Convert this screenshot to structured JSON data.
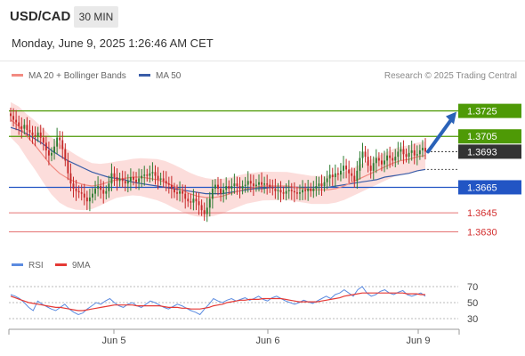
{
  "header": {
    "symbol": "USD/CAD",
    "timeframe": "30 MIN",
    "datetime": "Monday, June 9, 2025 1:26:46 AM CET"
  },
  "legend": {
    "ma20_label": "MA 20 + Bollinger Bands",
    "ma50_label": "MA 50",
    "ma20_color": "#f28b82",
    "ma50_color": "#3a5da8",
    "credit": "Research © 2025 Trading Central"
  },
  "rsi_legend": {
    "rsi_label": "RSI",
    "ma_label": "9MA",
    "rsi_color": "#5b8be0",
    "ma_color": "#e53935"
  },
  "colors": {
    "candle_up": "#2e7d32",
    "candle_down": "#c62828",
    "resistance": "#4e9a06",
    "support": "#2255c4",
    "target_line": "#e57373",
    "arrow": "#2a62b8",
    "band_fill": "#fbd7d5",
    "current_price_bg": "#333333"
  },
  "chart_data": [
    {
      "type": "candlestick",
      "x_labels": [
        "Jun 5",
        "Jun 6",
        "Jun 9"
      ],
      "ylim": [
        1.3622,
        1.3738
      ],
      "current_price": 1.3693,
      "forecast": "up, toward 1.3725",
      "levels": [
        {
          "value": 1.3725,
          "label": "1.3725",
          "kind": "resistance"
        },
        {
          "value": 1.3705,
          "label": "1.3705",
          "kind": "resistance"
        },
        {
          "value": 1.3665,
          "label": "1.3665",
          "kind": "support"
        },
        {
          "value": 1.3645,
          "label": "1.3645",
          "kind": "target"
        },
        {
          "value": 1.363,
          "label": "1.3630",
          "kind": "target"
        }
      ],
      "closes": [
        1.3721,
        1.3718,
        1.3716,
        1.3713,
        1.3711,
        1.3714,
        1.371,
        1.3708,
        1.3706,
        1.3705,
        1.3708,
        1.3704,
        1.37,
        1.3694,
        1.369,
        1.3692,
        1.3697,
        1.3704,
        1.3702,
        1.3695,
        1.3686,
        1.3676,
        1.3668,
        1.3664,
        1.3662,
        1.3661,
        1.366,
        1.3657,
        1.3654,
        1.3657,
        1.366,
        1.3664,
        1.3666,
        1.3663,
        1.366,
        1.3662,
        1.3668,
        1.3676,
        1.3673,
        1.367,
        1.3672,
        1.367,
        1.3668,
        1.367,
        1.3673,
        1.3671,
        1.3669,
        1.3672,
        1.3674,
        1.3675,
        1.3674,
        1.3676,
        1.3677,
        1.3674,
        1.3671,
        1.3672,
        1.367,
        1.3668,
        1.3667,
        1.3664,
        1.3661,
        1.366,
        1.3662,
        1.366,
        1.3656,
        1.3654,
        1.3653,
        1.3656,
        1.3654,
        1.3651,
        1.3647,
        1.3644,
        1.3649,
        1.3656,
        1.3664,
        1.3667,
        1.3664,
        1.366,
        1.3663,
        1.3666,
        1.3664,
        1.3666,
        1.3668,
        1.3666,
        1.3664,
        1.3666,
        1.3667,
        1.367,
        1.3668,
        1.3666,
        1.3667,
        1.3669,
        1.3667,
        1.3668,
        1.3667,
        1.3665,
        1.3664,
        1.3662,
        1.3663,
        1.3661,
        1.366,
        1.3662,
        1.3663,
        1.3662,
        1.3661,
        1.366,
        1.3661,
        1.3663,
        1.3662,
        1.3664,
        1.3662,
        1.3664,
        1.3666,
        1.3668,
        1.3666,
        1.3669,
        1.3672,
        1.3675,
        1.3673,
        1.3676,
        1.3675,
        1.3678,
        1.3682,
        1.3679,
        1.3676,
        1.3674,
        1.367,
        1.3678,
        1.3688,
        1.3693,
        1.3689,
        1.3682,
        1.3678,
        1.3684,
        1.3688,
        1.3686,
        1.3683,
        1.3686,
        1.369,
        1.3688,
        1.3686,
        1.3689,
        1.3693,
        1.3695,
        1.3691,
        1.3689,
        1.3692,
        1.3694,
        1.369,
        1.3691,
        1.3694,
        1.3696,
        1.3693
      ],
      "series": [
        {
          "name": "MA 20 + Bollinger Bands",
          "values": [
            1.3718,
            1.3713,
            1.3705,
            1.3698,
            1.369,
            1.3682,
            1.3676,
            1.3672,
            1.3669,
            1.3667,
            1.3666,
            1.3667,
            1.3669,
            1.3671,
            1.3672,
            1.3673,
            1.3673,
            1.3672,
            1.3671,
            1.3669,
            1.3666,
            1.3663,
            1.366,
            1.3658,
            1.3657,
            1.3657,
            1.3658,
            1.366,
            1.3662,
            1.3664,
            1.3665,
            1.3666,
            1.3666,
            1.3666,
            1.3666,
            1.3665,
            1.3664,
            1.3663,
            1.3663,
            1.3663,
            1.3664,
            1.3666,
            1.3669,
            1.3672,
            1.3675,
            1.3678,
            1.3681,
            1.3684,
            1.3686,
            1.3687,
            1.3689,
            1.369
          ]
        },
        {
          "name": "MA 50",
          "values": [
            1.3712,
            1.371,
            1.3707,
            1.3703,
            1.3699,
            1.3694,
            1.369,
            1.3686,
            1.3683,
            1.368,
            1.3677,
            1.3675,
            1.3673,
            1.3672,
            1.3671,
            1.3669,
            1.3668,
            1.3667,
            1.3666,
            1.3665,
            1.3664,
            1.3663,
            1.3662,
            1.3661,
            1.366,
            1.366,
            1.366,
            1.3661,
            1.3662,
            1.3663,
            1.3664,
            1.3664,
            1.3665,
            1.3665,
            1.3665,
            1.3665,
            1.3665,
            1.3665,
            1.3665,
            1.3665,
            1.3666,
            1.3667,
            1.3668,
            1.3669,
            1.367,
            1.3671,
            1.3673,
            1.3674,
            1.3675,
            1.3676,
            1.3678,
            1.3679
          ]
        }
      ]
    },
    {
      "type": "line",
      "ylim": [
        20,
        80
      ],
      "ticks": [
        70,
        50,
        30
      ],
      "x_labels": [
        "Jun 5",
        "Jun 6",
        "Jun 9"
      ],
      "series": [
        {
          "name": "RSI",
          "values": [
            60,
            58,
            55,
            50,
            44,
            40,
            52,
            48,
            45,
            42,
            40,
            44,
            48,
            42,
            38,
            35,
            37,
            42,
            46,
            50,
            48,
            52,
            55,
            50,
            46,
            44,
            48,
            50,
            46,
            44,
            48,
            52,
            50,
            47,
            44,
            42,
            45,
            48,
            46,
            43,
            40,
            38,
            35,
            42,
            48,
            55,
            52,
            50,
            53,
            55,
            52,
            54,
            56,
            53,
            55,
            58,
            54,
            52,
            56,
            58,
            55,
            52,
            50,
            48,
            50,
            53,
            51,
            49,
            52,
            55,
            58,
            55,
            60,
            62,
            66,
            62,
            58,
            66,
            70,
            62,
            58,
            60,
            64,
            66,
            62,
            60,
            63,
            65,
            60,
            58,
            60,
            62,
            58
          ]
        },
        {
          "name": "9MA",
          "values": [
            58,
            56,
            54,
            52,
            50,
            49,
            48,
            47,
            46,
            45,
            44,
            44,
            43,
            42,
            41,
            40,
            40,
            41,
            42,
            43,
            44,
            45,
            46,
            47,
            47,
            47,
            47,
            47,
            46,
            46,
            46,
            46,
            46,
            46,
            45,
            44,
            44,
            44,
            43,
            43,
            42,
            42,
            42,
            43,
            44,
            46,
            47,
            48,
            50,
            51,
            52,
            53,
            53,
            54,
            54,
            54,
            55,
            55,
            55,
            55,
            55,
            54,
            53,
            52,
            51,
            51,
            51,
            51,
            51,
            52,
            53,
            54,
            55,
            56,
            58,
            59,
            60,
            61,
            62,
            62,
            62,
            62,
            62,
            62,
            62,
            62,
            62,
            62,
            61,
            61,
            61,
            60,
            60
          ]
        }
      ]
    }
  ]
}
